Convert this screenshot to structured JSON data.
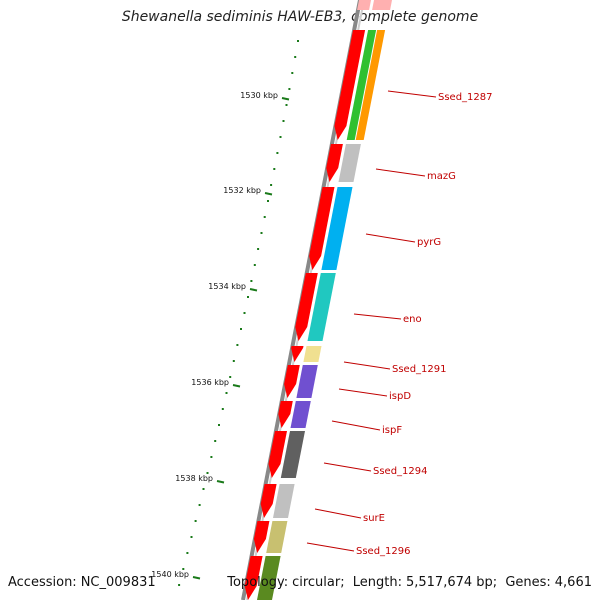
{
  "title": "Shewanella sediminis HAW-EB3, complete genome",
  "footer": {
    "accession_label": "Accession:",
    "accession": "NC_009831",
    "topology_label": "Topology:",
    "topology": "circular;",
    "length_label": "Length:",
    "length": "5,517,674 bp;",
    "genes_label": "Genes:",
    "genes": "4,661"
  },
  "scale": {
    "unit": "kbp",
    "major_ticks": [
      {
        "value": 1530,
        "label": "1530 kbp"
      },
      {
        "value": 1532,
        "label": "1532 kbp"
      },
      {
        "value": 1534,
        "label": "1534 kbp"
      },
      {
        "value": 1536,
        "label": "1536 kbp"
      },
      {
        "value": 1538,
        "label": "1538 kbp"
      },
      {
        "value": 1540,
        "label": "1540 kbp"
      }
    ]
  },
  "genes": [
    {
      "name": "Ssed_1287",
      "cog_color": "#ff9900"
    },
    {
      "name": "mazG",
      "cog_color": "#c0c0c0"
    },
    {
      "name": "pyrG",
      "cog_color": "#00b0f0"
    },
    {
      "name": "eno",
      "cog_color": "#20c8c0"
    },
    {
      "name": "Ssed_1291",
      "cog_color": "#f0e090"
    },
    {
      "name": "ispD",
      "cog_color": "#7050d0"
    },
    {
      "name": "ispF",
      "cog_color": "#7050d0"
    },
    {
      "name": "Ssed_1294",
      "cog_color": "#606060"
    },
    {
      "name": "surE",
      "cog_color": "#c0c0c0"
    },
    {
      "name": "Ssed_1296",
      "cog_color": "#c8c070"
    }
  ],
  "colors": {
    "cds": "#ff0000",
    "tick": "#1a7a1a",
    "label": "#c00000",
    "backbone": "#888888"
  }
}
